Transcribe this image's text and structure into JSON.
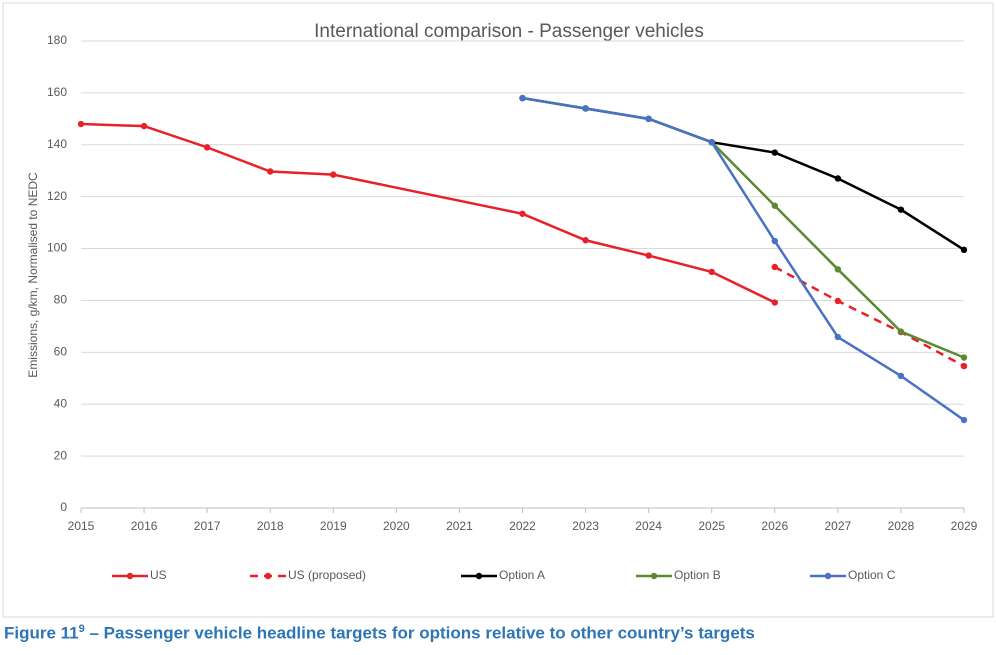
{
  "chart_data": {
    "type": "line",
    "title": "International comparison - Passenger vehicles",
    "y_label": "Emissions, g/km, Normalised to NEDC",
    "xlim": [
      2015,
      2029
    ],
    "xticks": [
      2015,
      2016,
      2017,
      2018,
      2019,
      2020,
      2021,
      2022,
      2023,
      2024,
      2025,
      2026,
      2027,
      2028,
      2029
    ],
    "ylim": [
      0,
      180
    ],
    "yticks": [
      0,
      20,
      40,
      60,
      80,
      100,
      120,
      140,
      160,
      180
    ],
    "grid": true,
    "legend": "bottom",
    "series": [
      {
        "name": "US",
        "color": "#e8202a",
        "dashed": false,
        "x": [
          2015,
          2016,
          2017,
          2018,
          2019,
          2022,
          2023,
          2024,
          2025,
          2026
        ],
        "values": [
          148,
          147.2,
          139,
          129.7,
          128.5,
          113.4,
          103.2,
          97.3,
          91,
          79.2
        ]
      },
      {
        "name": "US (proposed)",
        "color": "#e8202a",
        "dashed": true,
        "x": [
          2026,
          2027,
          2028,
          2029
        ],
        "values": [
          92.9,
          79.8,
          67.8,
          54.7
        ]
      },
      {
        "name": "Option A",
        "color": "#000000",
        "dashed": false,
        "x": [
          2022,
          2023,
          2024,
          2025,
          2026,
          2027,
          2028,
          2029
        ],
        "values": [
          158,
          154,
          150,
          141,
          137,
          127,
          115,
          99.5
        ]
      },
      {
        "name": "Option B",
        "color": "#5b8a32",
        "dashed": false,
        "x": [
          2022,
          2023,
          2024,
          2025,
          2026,
          2027,
          2028,
          2029
        ],
        "values": [
          158,
          154,
          150,
          141,
          116.5,
          92,
          68,
          58
        ]
      },
      {
        "name": "Option C",
        "color": "#4a72c4",
        "dashed": false,
        "x": [
          2022,
          2023,
          2024,
          2025,
          2026,
          2027,
          2028,
          2029
        ],
        "values": [
          158,
          154,
          150,
          141,
          102.9,
          65.9,
          50.9,
          33.9
        ]
      }
    ]
  },
  "caption": {
    "text": "Figure 11",
    "superscript": "9",
    "rest": " – Passenger vehicle headline targets for options relative to other country’s targets"
  }
}
